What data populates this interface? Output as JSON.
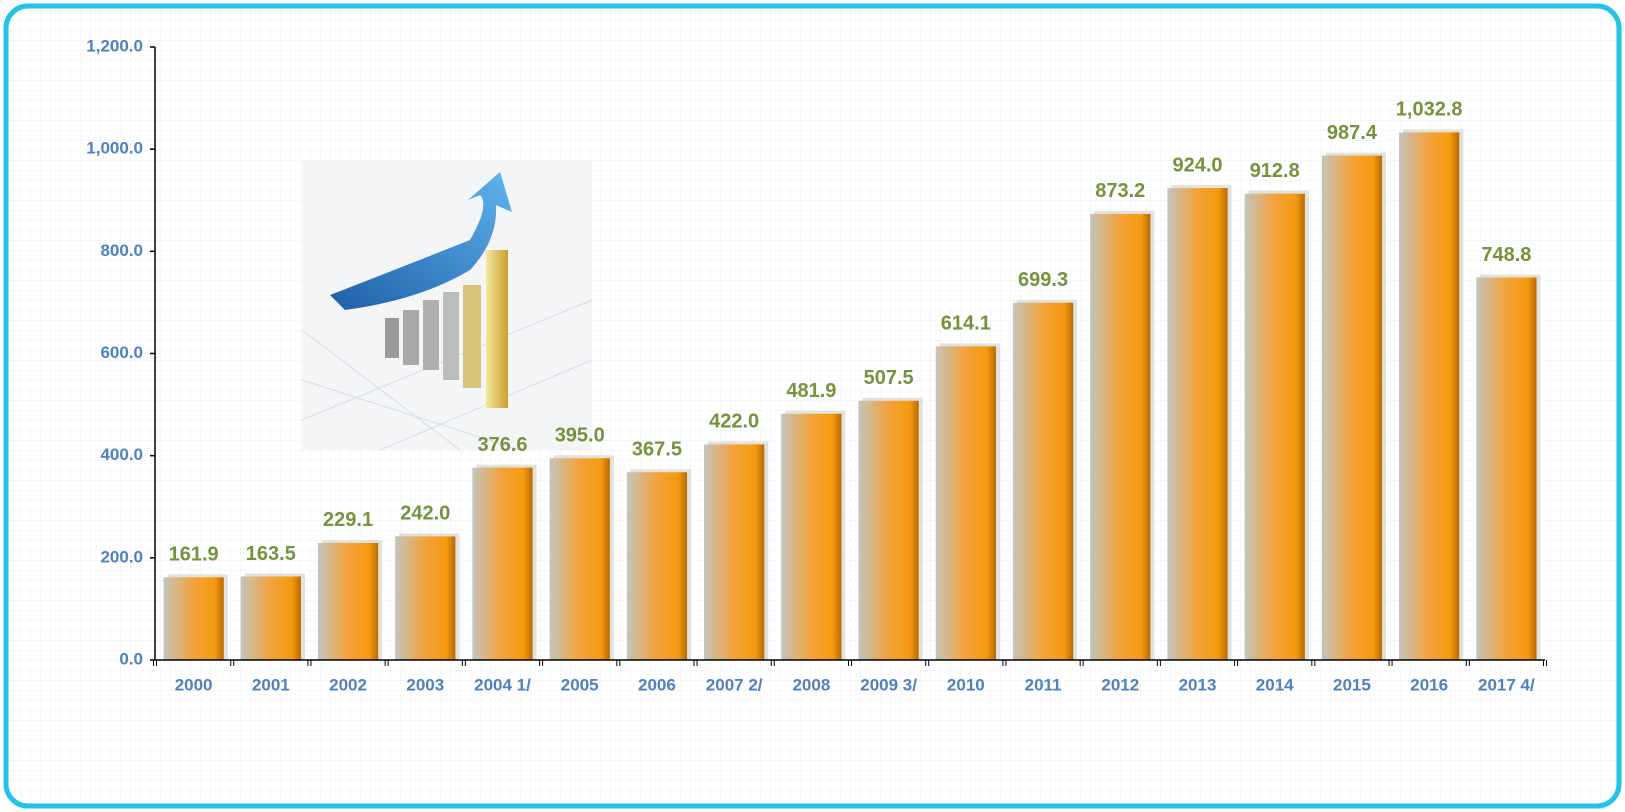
{
  "chart_data": {
    "type": "bar",
    "categories": [
      "2000",
      "2001",
      "2002",
      "2003",
      "2004 1/",
      "2005",
      "2006",
      "2007 2/",
      "2008",
      "2009 3/",
      "2010",
      "2011",
      "2012",
      "2013",
      "2014",
      "2015",
      "2016",
      "2017 4/"
    ],
    "values": [
      161.9,
      163.5,
      229.1,
      242.0,
      376.6,
      395.0,
      367.5,
      422.0,
      481.9,
      507.5,
      614.1,
      699.3,
      873.2,
      924.0,
      912.8,
      987.4,
      1032.8,
      748.8
    ],
    "value_labels": [
      "161.9",
      "163.5",
      "229.1",
      "242.0",
      "376.6",
      "395.0",
      "367.5",
      "422.0",
      "481.9",
      "507.5",
      "614.1",
      "699.3",
      "873.2",
      "924.0",
      "912.8",
      "987.4",
      "1,032.8",
      "748.8"
    ],
    "color": "#f59a0f",
    "ylim": [
      0,
      1200
    ],
    "yticks": [
      {
        "value": 0,
        "label": "0.0"
      },
      {
        "value": 200,
        "label": "200.0"
      },
      {
        "value": 400,
        "label": "400.0"
      },
      {
        "value": 600,
        "label": "600.0"
      },
      {
        "value": 800,
        "label": "800.0"
      },
      {
        "value": 1000,
        "label": "1,000.0"
      },
      {
        "value": 1200,
        "label": "1,200.0"
      }
    ]
  }
}
